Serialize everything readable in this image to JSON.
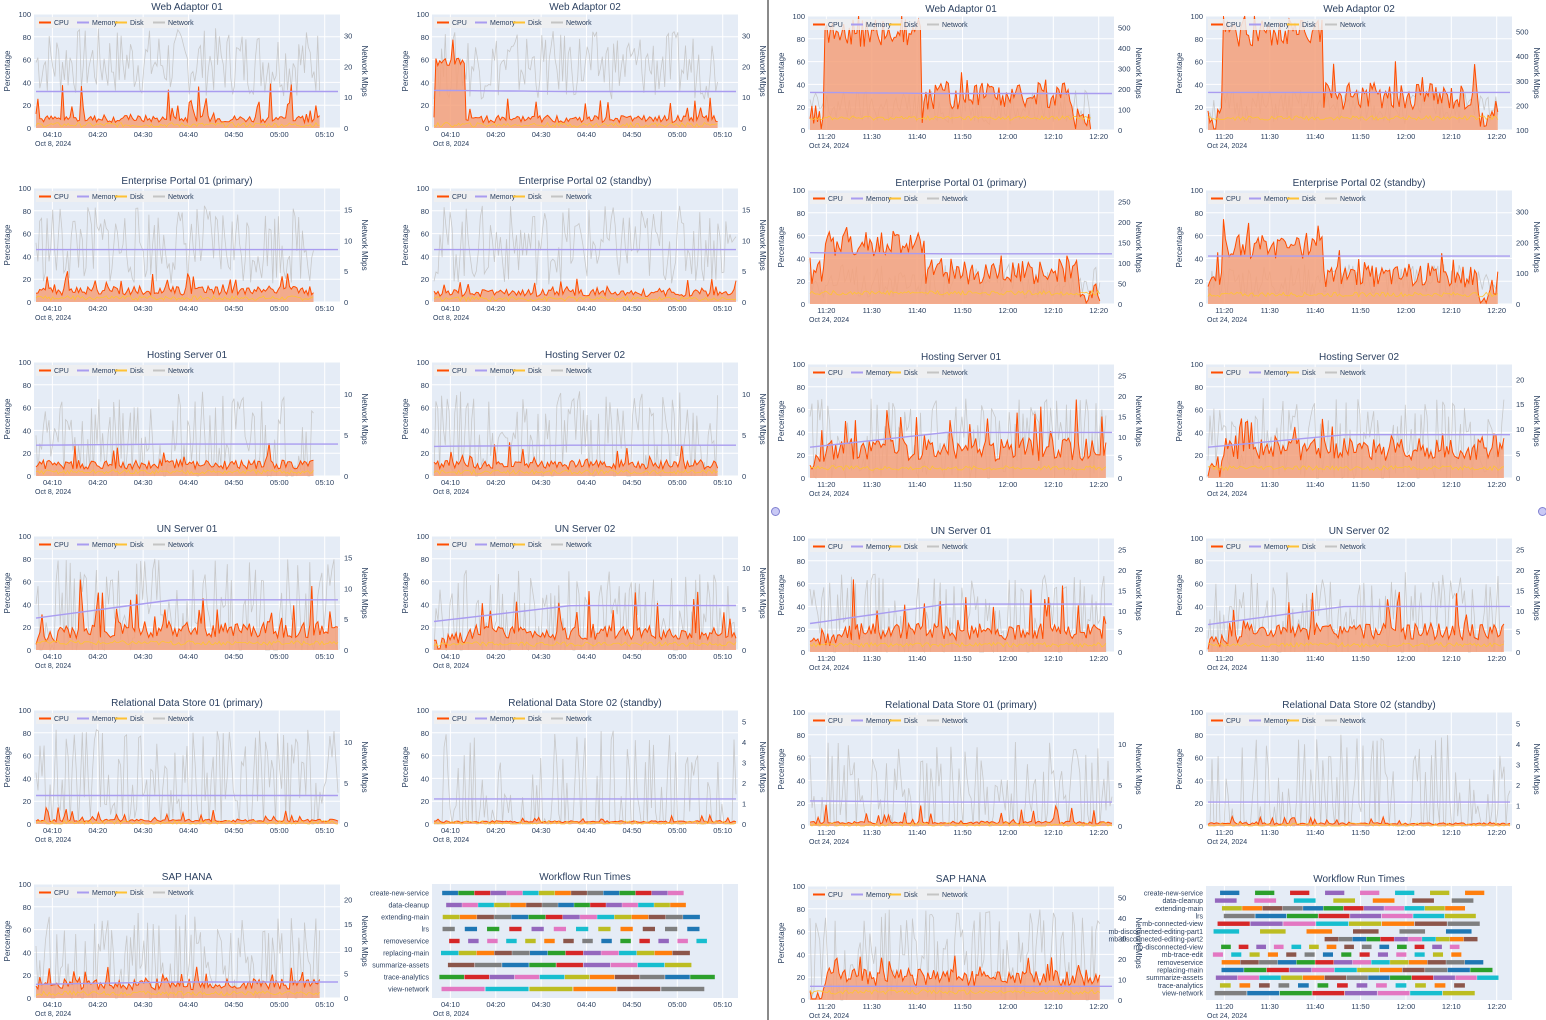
{
  "colors": {
    "cpu": "#ff4d00",
    "cpu_fill": "#f4a07a",
    "memory": "#a99cf0",
    "disk": "#ffc233",
    "network": "#c4c4c4",
    "plot_bg": "#e5ecf6",
    "grid": "#ffffff",
    "text": "#2a3f5f"
  },
  "legend_labels": [
    "CPU",
    "Memory",
    "Disk",
    "Network"
  ],
  "axis_labels": {
    "left": "Percentage",
    "right": "Network Mbps"
  },
  "left_group": {
    "date_label": "Oct 8, 2024",
    "x_ticks": [
      "04:10",
      "04:20",
      "04:30",
      "04:40",
      "04:50",
      "05:00",
      "05:10"
    ],
    "charts": [
      {
        "title": "Web Adaptor 01",
        "right_ticks": [
          "0",
          "10",
          "20",
          "30"
        ],
        "cpu_base": 8,
        "cpu_spike": 15,
        "memory": [
          32,
          32
        ],
        "network": 58,
        "net_amp": 30,
        "cpu_end": 0.94,
        "profile": "flat"
      },
      {
        "title": "Web Adaptor 02",
        "right_ticks": [
          "0",
          "10",
          "20",
          "30"
        ],
        "cpu_base": 8,
        "cpu_spike": 10,
        "memory": [
          33,
          32
        ],
        "network": 55,
        "net_amp": 30,
        "cpu_end": 0.94,
        "profile": "early"
      },
      {
        "title": "Enterprise Portal 01 (primary)",
        "right_ticks": [
          "0",
          "5",
          "10",
          "15"
        ],
        "cpu_base": 10,
        "cpu_spike": 8,
        "memory": [
          46,
          46
        ],
        "network": 50,
        "net_amp": 35,
        "cpu_end": 0.92,
        "profile": "flat"
      },
      {
        "title": "Enterprise Portal 02 (standby)",
        "right_ticks": [
          "0",
          "5",
          "10",
          "15"
        ],
        "cpu_base": 8,
        "cpu_spike": 6,
        "memory": [
          46,
          46
        ],
        "network": 50,
        "net_amp": 35,
        "cpu_end": 1.0,
        "profile": "flat"
      },
      {
        "title": "Hosting Server 01",
        "right_ticks": [
          "0",
          "5",
          "10"
        ],
        "cpu_base": 10,
        "cpu_spike": 10,
        "memory": [
          27,
          28
        ],
        "network": 30,
        "net_amp": 45,
        "cpu_end": 0.92,
        "profile": "flat"
      },
      {
        "title": "Hosting Server 02",
        "right_ticks": [
          "0",
          "5",
          "10"
        ],
        "cpu_base": 10,
        "cpu_spike": 10,
        "memory": [
          26,
          27
        ],
        "network": 30,
        "net_amp": 45,
        "cpu_end": 0.94,
        "profile": "flat"
      },
      {
        "title": "UN Server 01",
        "right_ticks": [
          "0",
          "5",
          "10",
          "15"
        ],
        "cpu_base": 18,
        "cpu_spike": 20,
        "memory": [
          28,
          44
        ],
        "network": 30,
        "net_amp": 50,
        "cpu_end": 1.0,
        "profile": "ramp"
      },
      {
        "title": "UN Server 02",
        "right_ticks": [
          "0",
          "5",
          "10"
        ],
        "cpu_base": 15,
        "cpu_spike": 18,
        "memory": [
          25,
          39
        ],
        "network": 25,
        "net_amp": 45,
        "cpu_end": 1.0,
        "profile": "ramp"
      },
      {
        "title": "Relational Data Store 01 (primary)",
        "right_ticks": [
          "0",
          "5",
          "10"
        ],
        "cpu_base": 3,
        "cpu_spike": 6,
        "memory": [
          25,
          25
        ],
        "network": 30,
        "net_amp": 55,
        "cpu_end": 1.0,
        "profile": "flat"
      },
      {
        "title": "Relational Data Store 02 (standby)",
        "right_ticks": [
          "0",
          "1",
          "2",
          "3",
          "4",
          "5"
        ],
        "cpu_base": 2,
        "cpu_spike": 3,
        "memory": [
          22,
          22
        ],
        "network": 2,
        "net_amp": 80,
        "cpu_end": 1.0,
        "profile": "flat"
      },
      {
        "title": "SAP HANA",
        "right_ticks": [
          "0",
          "5",
          "10",
          "15",
          "20"
        ],
        "cpu_base": 12,
        "cpu_spike": 8,
        "memory": [
          12,
          14
        ],
        "network": 30,
        "net_amp": 45,
        "cpu_end": 0.94,
        "profile": "flat"
      }
    ],
    "workflow": {
      "title": "Workflow Run Times",
      "rows": [
        "create-new-service",
        "data-cleanup",
        "extending-main",
        "lrs",
        "removeservice",
        "replacing-main",
        "summarize-assets",
        "trace-analytics",
        "view-network"
      ]
    }
  },
  "right_group": {
    "date_label": "Oct 24, 2024",
    "x_ticks": [
      "11:20",
      "11:30",
      "11:40",
      "11:50",
      "12:00",
      "12:10",
      "12:20"
    ],
    "charts": [
      {
        "title": "Web Adaptor 01",
        "right_ticks": [
          "0",
          "100",
          "200",
          "300",
          "400",
          "500"
        ],
        "cpu_base": 30,
        "cpu_spike": 10,
        "memory": [
          33,
          32
        ],
        "network": 20,
        "net_amp": 15,
        "cpu_end": 0.93,
        "profile": "burst"
      },
      {
        "title": "Web Adaptor 02",
        "right_ticks": [
          "100",
          "200",
          "300",
          "400",
          "500"
        ],
        "cpu_base": 30,
        "cpu_spike": 10,
        "memory": [
          33,
          33
        ],
        "network": 20,
        "net_amp": 15,
        "cpu_end": 0.96,
        "profile": "burst"
      },
      {
        "title": "Enterprise Portal 01 (primary)",
        "right_ticks": [
          "0",
          "50",
          "100",
          "150",
          "200",
          "250"
        ],
        "cpu_base": 28,
        "cpu_spike": 12,
        "memory": [
          45,
          44
        ],
        "network": 20,
        "net_amp": 15,
        "cpu_end": 0.96,
        "profile": "burst2"
      },
      {
        "title": "Enterprise Portal 02 (standby)",
        "right_ticks": [
          "0",
          "100",
          "200",
          "300"
        ],
        "cpu_base": 24,
        "cpu_spike": 12,
        "memory": [
          42,
          42
        ],
        "network": 20,
        "net_amp": 15,
        "cpu_end": 0.96,
        "profile": "burst2"
      },
      {
        "title": "Hosting Server 01",
        "right_ticks": [
          "0",
          "5",
          "10",
          "15",
          "20",
          "25"
        ],
        "cpu_base": 25,
        "cpu_spike": 20,
        "memory": [
          27,
          40
        ],
        "network": 30,
        "net_amp": 40,
        "cpu_end": 0.98,
        "profile": "busy"
      },
      {
        "title": "Hosting Server 02",
        "right_ticks": [
          "0",
          "5",
          "10",
          "15",
          "20"
        ],
        "cpu_base": 25,
        "cpu_spike": 15,
        "memory": [
          27,
          38
        ],
        "network": 30,
        "net_amp": 40,
        "cpu_end": 0.98,
        "profile": "busy"
      },
      {
        "title": "UN Server 01",
        "right_ticks": [
          "0",
          "5",
          "10",
          "15",
          "20",
          "25"
        ],
        "cpu_base": 18,
        "cpu_spike": 20,
        "memory": [
          25,
          42
        ],
        "network": 25,
        "net_amp": 45,
        "cpu_end": 0.98,
        "profile": "ramp"
      },
      {
        "title": "UN Server 02",
        "right_ticks": [
          "0",
          "5",
          "10",
          "15",
          "20",
          "25"
        ],
        "cpu_base": 18,
        "cpu_spike": 20,
        "memory": [
          24,
          40
        ],
        "network": 25,
        "net_amp": 45,
        "cpu_end": 0.98,
        "profile": "ramp"
      },
      {
        "title": "Relational Data Store 01 (primary)",
        "right_ticks": [
          "0",
          "5",
          "10"
        ],
        "cpu_base": 3,
        "cpu_spike": 8,
        "memory": [
          22,
          21
        ],
        "network": 25,
        "net_amp": 50,
        "cpu_end": 1.0,
        "profile": "flat"
      },
      {
        "title": "Relational Data Store 02 (standby)",
        "right_ticks": [
          "0",
          "1",
          "2",
          "3",
          "4",
          "5"
        ],
        "cpu_base": 2,
        "cpu_spike": 3,
        "memory": [
          21,
          21
        ],
        "network": 2,
        "net_amp": 80,
        "cpu_end": 1.0,
        "profile": "flat"
      },
      {
        "title": "SAP HANA",
        "right_ticks": [
          "0",
          "10",
          "20",
          "30",
          "40",
          "50"
        ],
        "cpu_base": 20,
        "cpu_spike": 10,
        "memory": [
          12,
          12
        ],
        "network": 35,
        "net_amp": 45,
        "cpu_end": 0.96,
        "profile": "busy"
      }
    ],
    "workflow": {
      "title": "Workflow Run Times",
      "rows": [
        "create-new-service",
        "data-cleanup",
        "extending-main",
        "lrs",
        "mb-connected-view",
        "mb-disconnected-editing-part1",
        "mb-disconnected-editing-part2",
        "mb-disconnected-view",
        "mb-trace-edit",
        "removeservice",
        "replacing-main",
        "summarize-assets",
        "trace-analytics",
        "view-network"
      ]
    }
  },
  "left_ticks": [
    "0",
    "20",
    "40",
    "60",
    "80",
    "100"
  ]
}
